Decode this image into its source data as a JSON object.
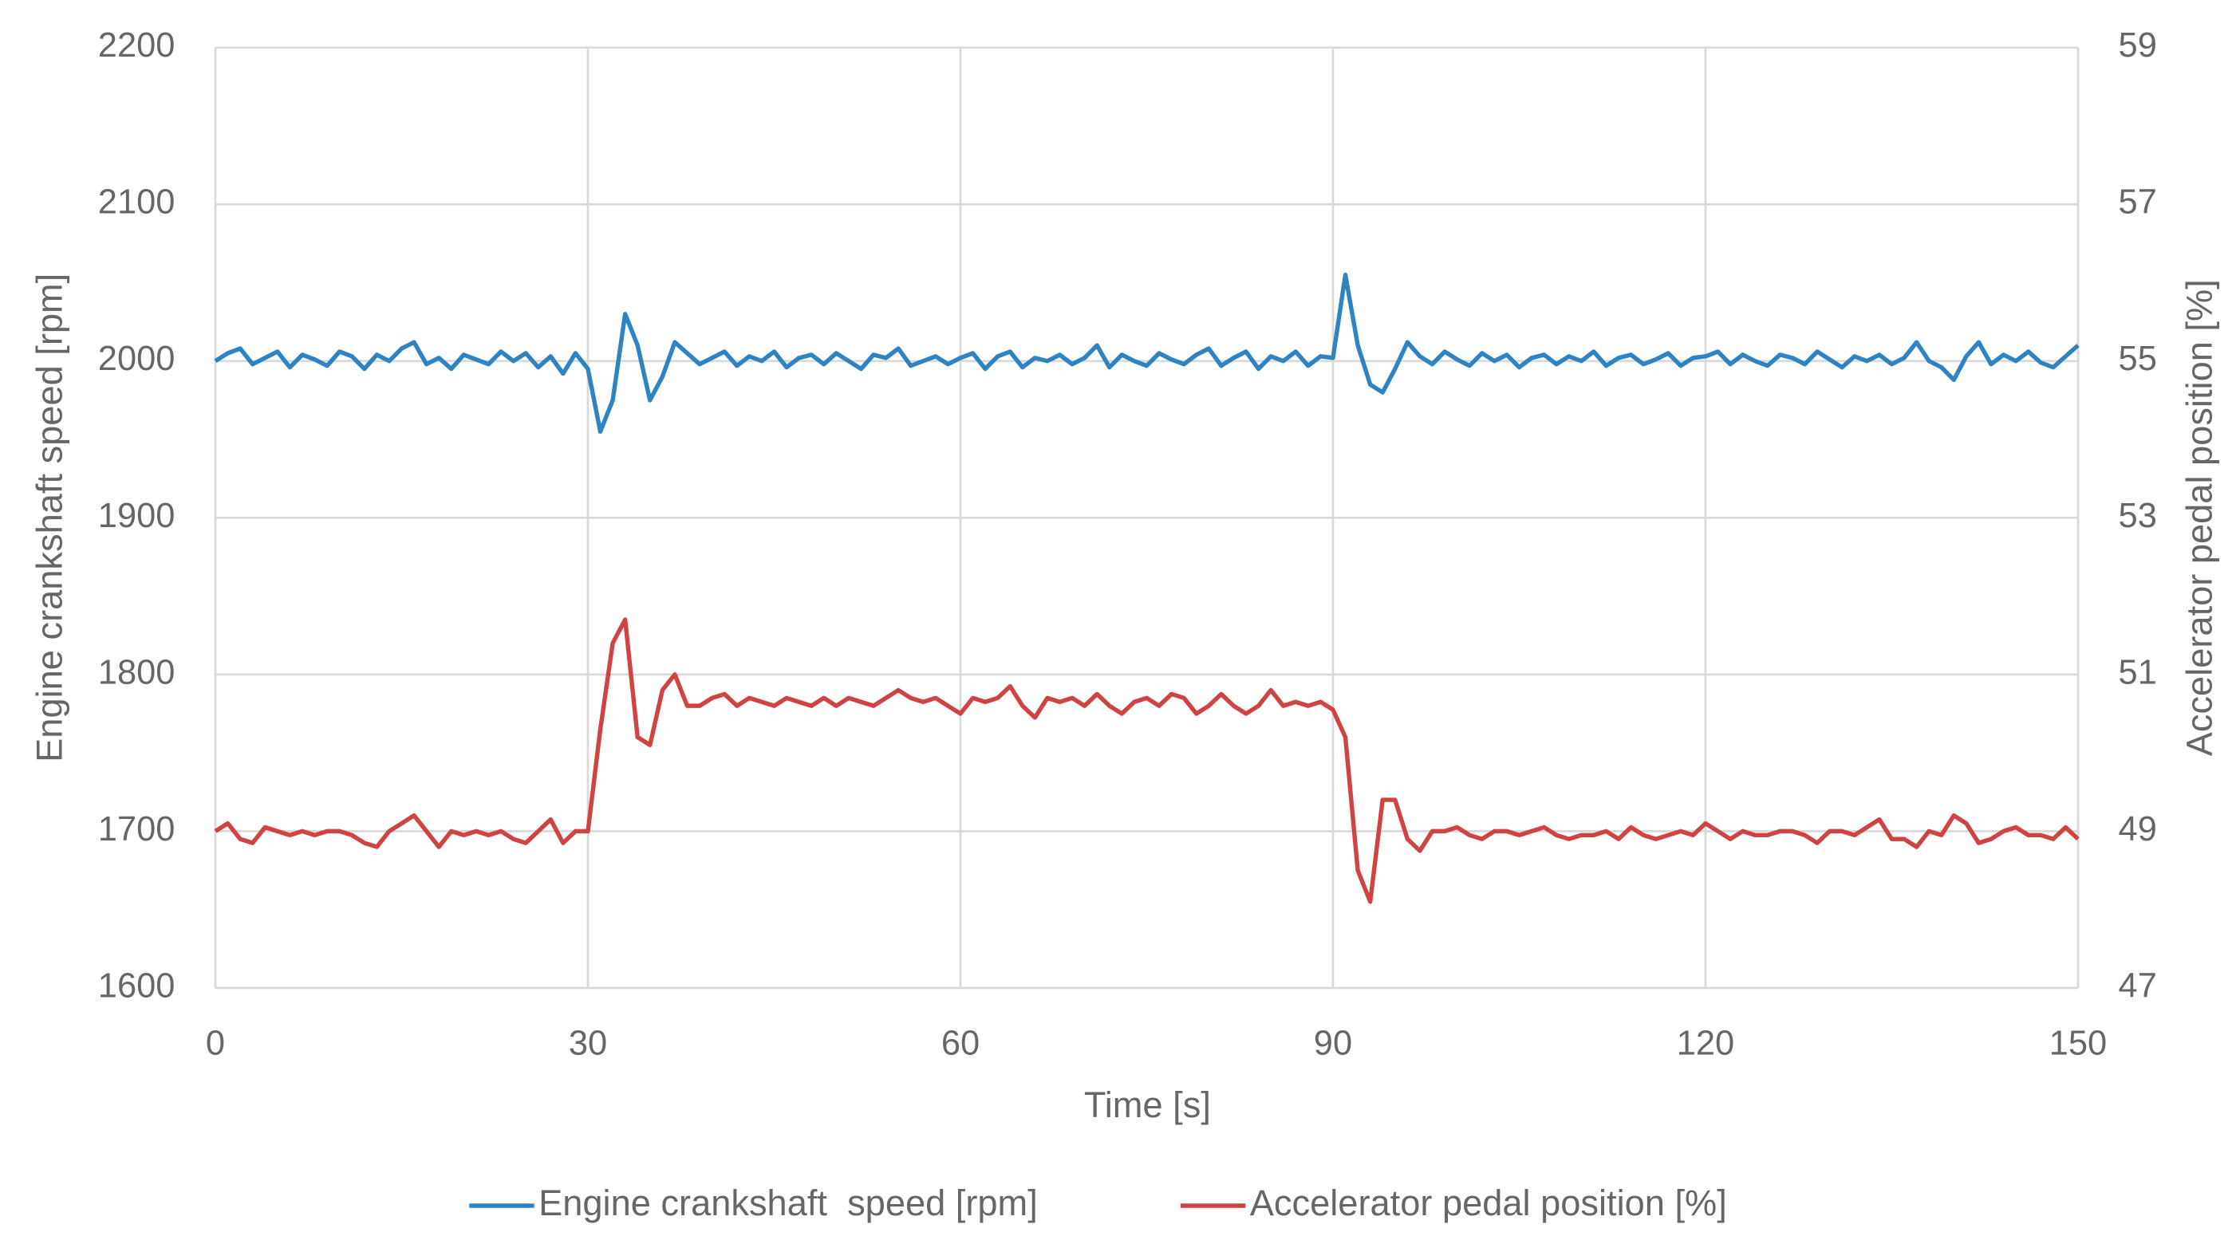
{
  "chart_data": {
    "type": "line",
    "xlabel": "Time [s]",
    "ylabel": "Engine crankshaft speed [rpm]",
    "y2label": "Accelerator pedal position [%]",
    "xlim": [
      0,
      150
    ],
    "xticks": [
      0,
      30,
      60,
      90,
      120,
      150
    ],
    "ylim": [
      1600,
      2200
    ],
    "yticks": [
      1600,
      1700,
      1800,
      1900,
      2000,
      2100,
      2200
    ],
    "y2lim": [
      47,
      59
    ],
    "y2ticks": [
      47,
      49,
      51,
      53,
      55,
      57,
      59
    ],
    "grid": true,
    "legend": "bottom",
    "x": [
      0,
      1,
      2,
      3,
      4,
      5,
      6,
      7,
      8,
      9,
      10,
      11,
      12,
      13,
      14,
      15,
      16,
      17,
      18,
      19,
      20,
      21,
      22,
      23,
      24,
      25,
      26,
      27,
      28,
      29,
      30,
      31,
      32,
      33,
      34,
      35,
      36,
      37,
      38,
      39,
      40,
      41,
      42,
      43,
      44,
      45,
      46,
      47,
      48,
      49,
      50,
      51,
      52,
      53,
      54,
      55,
      56,
      57,
      58,
      59,
      60,
      61,
      62,
      63,
      64,
      65,
      66,
      67,
      68,
      69,
      70,
      71,
      72,
      73,
      74,
      75,
      76,
      77,
      78,
      79,
      80,
      81,
      82,
      83,
      84,
      85,
      86,
      87,
      88,
      89,
      90,
      91,
      92,
      93,
      94,
      95,
      96,
      97,
      98,
      99,
      100,
      101,
      102,
      103,
      104,
      105,
      106,
      107,
      108,
      109,
      110,
      111,
      112,
      113,
      114,
      115,
      116,
      117,
      118,
      119,
      120,
      121,
      122,
      123,
      124,
      125,
      126,
      127,
      128,
      129,
      130,
      131,
      132,
      133,
      134,
      135,
      136,
      137,
      138,
      139,
      140,
      141,
      142,
      143,
      144,
      145,
      146,
      147,
      148,
      149,
      150
    ],
    "series": [
      {
        "name": "Engine crankshaft  speed [rpm]",
        "color": "#2e83c3",
        "axis": "y",
        "values": [
          2000,
          2005,
          2008,
          1998,
          2002,
          2006,
          1996,
          2004,
          2001,
          1997,
          2006,
          2003,
          1995,
          2004,
          2000,
          2008,
          2012,
          1998,
          2002,
          1995,
          2004,
          2001,
          1998,
          2006,
          2000,
          2005,
          1996,
          2003,
          1992,
          2005,
          1995,
          1955,
          1975,
          2030,
          2010,
          1975,
          1990,
          2012,
          2005,
          1998,
          2002,
          2006,
          1997,
          2003,
          2000,
          2006,
          1996,
          2002,
          2004,
          1998,
          2005,
          2000,
          1995,
          2004,
          2002,
          2008,
          1997,
          2000,
          2003,
          1998,
          2002,
          2005,
          1995,
          2003,
          2006,
          1996,
          2002,
          2000,
          2004,
          1998,
          2002,
          2010,
          1996,
          2004,
          2000,
          1997,
          2005,
          2001,
          1998,
          2004,
          2008,
          1997,
          2002,
          2006,
          1995,
          2003,
          2000,
          2006,
          1997,
          2003,
          2002,
          2055,
          2010,
          1985,
          1980,
          1995,
          2012,
          2003,
          1998,
          2006,
          2001,
          1997,
          2005,
          2000,
          2004,
          1996,
          2002,
          2004,
          1998,
          2003,
          2000,
          2006,
          1997,
          2002,
          2004,
          1998,
          2001,
          2005,
          1997,
          2002,
          2003,
          2006,
          1998,
          2004,
          2000,
          1997,
          2004,
          2002,
          1998,
          2006,
          2001,
          1996,
          2003,
          2000,
          2004,
          1998,
          2002,
          2012,
          2000,
          1996,
          1988,
          2003,
          2012,
          1998,
          2004,
          2000,
          2006,
          1999,
          1996,
          2003,
          2010
        ]
      },
      {
        "name": "Accelerator pedal position [%]",
        "color": "#d04343",
        "axis": "y2",
        "values": [
          49,
          49.1,
          48.9,
          48.85,
          49.05,
          49,
          48.95,
          49,
          48.95,
          49,
          49,
          48.95,
          48.85,
          48.8,
          49,
          49.1,
          49.2,
          49,
          48.8,
          49,
          48.95,
          49,
          48.95,
          49,
          48.9,
          48.85,
          49,
          49.15,
          48.85,
          49,
          49,
          50.3,
          51.4,
          51.7,
          50.2,
          50.1,
          50.8,
          51,
          50.6,
          50.6,
          50.7,
          50.75,
          50.6,
          50.7,
          50.65,
          50.6,
          50.7,
          50.65,
          50.6,
          50.7,
          50.6,
          50.7,
          50.65,
          50.6,
          50.7,
          50.8,
          50.7,
          50.65,
          50.7,
          50.6,
          50.5,
          50.7,
          50.65,
          50.7,
          50.85,
          50.6,
          50.45,
          50.7,
          50.65,
          50.7,
          50.6,
          50.75,
          50.6,
          50.5,
          50.65,
          50.7,
          50.6,
          50.75,
          50.7,
          50.5,
          50.6,
          50.75,
          50.6,
          50.5,
          50.6,
          50.8,
          50.6,
          50.65,
          50.6,
          50.65,
          50.55,
          50.2,
          48.5,
          48.1,
          49.4,
          49.4,
          48.9,
          48.75,
          49,
          49,
          49.05,
          48.95,
          48.9,
          49,
          49,
          48.95,
          49,
          49.05,
          48.95,
          48.9,
          48.95,
          48.95,
          49,
          48.9,
          49.05,
          48.95,
          48.9,
          48.95,
          49,
          48.95,
          49.1,
          49,
          48.9,
          49,
          48.95,
          48.95,
          49,
          49,
          48.95,
          48.85,
          49,
          49,
          48.95,
          49.05,
          49.15,
          48.9,
          48.9,
          48.8,
          49,
          48.95,
          49.2,
          49.1,
          48.85,
          48.9,
          49,
          49.05,
          48.95,
          48.95,
          48.9,
          49.05,
          48.9
        ]
      }
    ]
  }
}
